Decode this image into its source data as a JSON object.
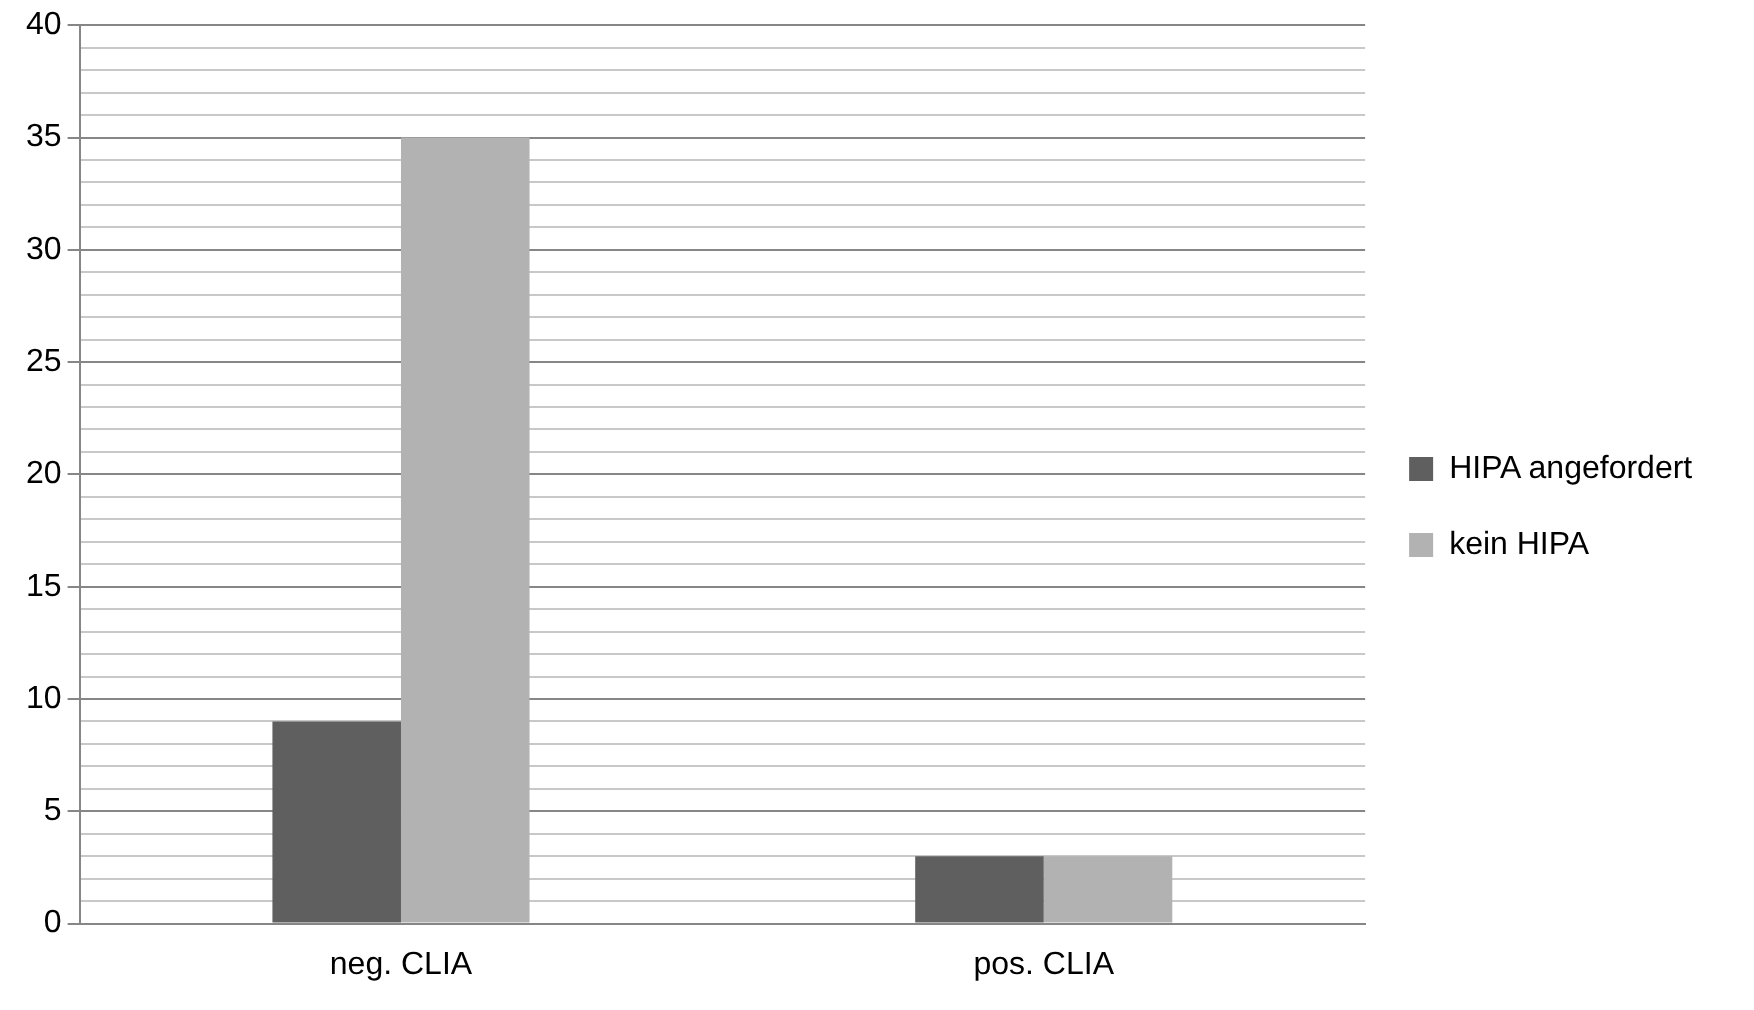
{
  "chart_data": {
    "type": "bar",
    "categories": [
      "neg. CLIA",
      "pos. CLIA"
    ],
    "series": [
      {
        "name": "HIPA angefordert",
        "color": "#5f5f5f",
        "values": [
          9,
          3
        ]
      },
      {
        "name": "kein HIPA",
        "color": "#b2b2b2",
        "values": [
          35,
          3
        ]
      }
    ],
    "ylim": [
      0,
      40
    ],
    "yticks": [
      0,
      {
        "value": 1,
        "label": null
      },
      {
        "value": 2,
        "label": null
      },
      {
        "value": 3,
        "label": null
      },
      {
        "value": 4,
        "label": null
      },
      5,
      {
        "value": 6,
        "label": null
      },
      {
        "value": 7,
        "label": null
      },
      {
        "value": 8,
        "label": null
      },
      {
        "value": 9,
        "label": null
      },
      10,
      {
        "value": 11,
        "label": null
      },
      {
        "value": 12,
        "label": null
      },
      {
        "value": 13,
        "label": null
      },
      {
        "value": 14,
        "label": null
      },
      15,
      {
        "value": 16,
        "label": null
      },
      {
        "value": 17,
        "label": null
      },
      {
        "value": 18,
        "label": null
      },
      {
        "value": 19,
        "label": null
      },
      20,
      {
        "value": 21,
        "label": null
      },
      {
        "value": 22,
        "label": null
      },
      {
        "value": 23,
        "label": null
      },
      {
        "value": 24,
        "label": null
      },
      25,
      {
        "value": 26,
        "label": null
      },
      {
        "value": 27,
        "label": null
      },
      {
        "value": 28,
        "label": null
      },
      {
        "value": 29,
        "label": null
      },
      30,
      {
        "value": 31,
        "label": null
      },
      {
        "value": 32,
        "label": null
      },
      {
        "value": 33,
        "label": null
      },
      {
        "value": 34,
        "label": null
      },
      35,
      {
        "value": 36,
        "label": null
      },
      {
        "value": 37,
        "label": null
      },
      {
        "value": 38,
        "label": null
      },
      {
        "value": 39,
        "label": null
      },
      40
    ],
    "grid": "y",
    "legend": "right"
  }
}
